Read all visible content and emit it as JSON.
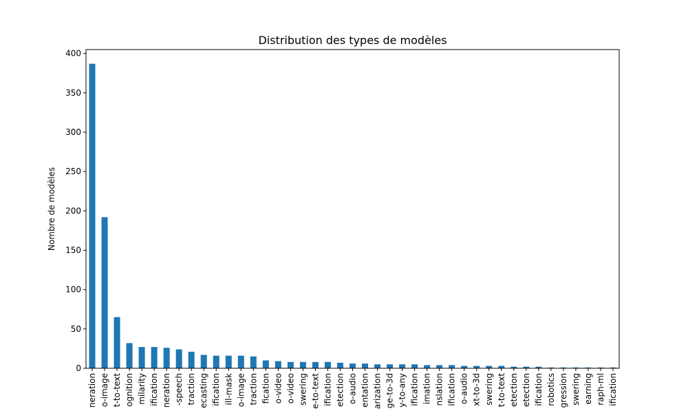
{
  "chart_data": {
    "type": "bar",
    "title": "Distribution des types de modèles",
    "xlabel": "",
    "ylabel": "Nombre de modèles",
    "ylim": [
      0,
      405
    ],
    "yticks": [
      0,
      50,
      100,
      150,
      200,
      250,
      300,
      350,
      400
    ],
    "grid": false,
    "bar_color": "#1f77b4",
    "categories": [
      "neration",
      "o-image",
      "t-to-text",
      "ognition",
      "milarity",
      "ification",
      "neration",
      "-speech",
      "traction",
      "ecasting",
      "ification",
      "ill-mask",
      "o-image",
      "traction",
      "fication",
      "o-video",
      "o-video",
      "swering",
      "e-to-text",
      "ification",
      "etection",
      "o-audio",
      "entation",
      "arization",
      "ge-to-3d",
      "y-to-any",
      "ification",
      "imation",
      "nslation",
      "ification",
      "o-audio",
      "xt-to-3d",
      "swering",
      "t-to-text",
      "etection",
      "etection",
      "ification",
      "robotics",
      "gression",
      "swering",
      "earning",
      "raph-ml",
      "ification"
    ],
    "values": [
      387,
      192,
      65,
      32,
      27,
      27,
      26,
      24,
      21,
      17,
      16,
      16,
      16,
      15,
      10,
      9,
      8,
      8,
      8,
      8,
      7,
      6,
      6,
      5,
      5,
      5,
      5,
      4,
      4,
      4,
      3,
      3,
      3,
      3,
      2,
      2,
      2,
      1,
      1,
      1,
      1,
      1,
      1
    ]
  }
}
